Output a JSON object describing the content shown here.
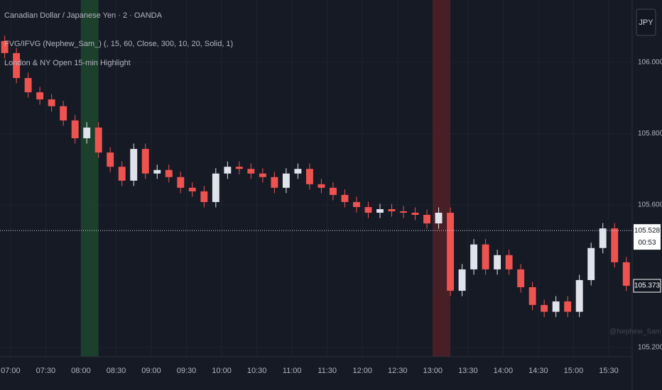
{
  "chart_data": {
    "type": "candlestick",
    "title": "Canadian Dollar / Japanese Yen · 2 · OANDA",
    "indicators": [
      "FVG/IFVG (Nephew_Sam_) (, 15, 60, Close, 300, 10, 20, Solid, 1)",
      "London & NY Open 15-min Highlight"
    ],
    "currency": "JPY",
    "watermark": "@Nephew_Sam_",
    "x": [
      415,
      425,
      435,
      445,
      455,
      465,
      475,
      485,
      495,
      505,
      515,
      525,
      535,
      545,
      555,
      565,
      575,
      585,
      595,
      605,
      615,
      625,
      635,
      645,
      655,
      665,
      675,
      685,
      695,
      705,
      715,
      725,
      735,
      745,
      755,
      765,
      775,
      785,
      795,
      805,
      815,
      825,
      835,
      845,
      855,
      865,
      875,
      885,
      895,
      905,
      915,
      925,
      935,
      945
    ],
    "open": [
      106.06,
      106.026,
      105.956,
      105.916,
      105.896,
      105.877,
      105.837,
      105.787,
      105.817,
      105.747,
      105.707,
      105.668,
      105.757,
      105.688,
      105.698,
      105.678,
      105.648,
      105.638,
      105.608,
      105.688,
      105.707,
      105.701,
      105.688,
      105.678,
      105.648,
      105.688,
      105.701,
      105.658,
      105.648,
      105.628,
      105.608,
      105.594,
      105.578,
      105.588,
      105.582,
      105.578,
      105.572,
      105.548,
      105.578,
      105.359,
      105.419,
      105.489,
      105.419,
      105.459,
      105.419,
      105.369,
      105.319,
      105.3,
      105.329,
      105.3,
      105.389,
      105.479,
      105.534,
      105.439
    ],
    "high": [
      106.075,
      106.041,
      105.971,
      105.931,
      105.911,
      105.892,
      105.852,
      105.832,
      105.832,
      105.762,
      105.722,
      105.772,
      105.772,
      105.713,
      105.713,
      105.693,
      105.663,
      105.653,
      105.703,
      105.722,
      105.722,
      105.716,
      105.703,
      105.693,
      105.703,
      105.716,
      105.716,
      105.673,
      105.663,
      105.643,
      105.623,
      105.609,
      105.603,
      105.603,
      105.597,
      105.593,
      105.587,
      105.593,
      105.593,
      105.434,
      105.504,
      105.504,
      105.474,
      105.474,
      105.434,
      105.384,
      105.334,
      105.344,
      105.344,
      105.404,
      105.494,
      105.549,
      105.549,
      105.454
    ],
    "low": [
      106.011,
      105.941,
      105.901,
      105.881,
      105.862,
      105.822,
      105.772,
      105.772,
      105.732,
      105.692,
      105.653,
      105.653,
      105.673,
      105.673,
      105.663,
      105.633,
      105.623,
      105.593,
      105.593,
      105.673,
      105.686,
      105.673,
      105.663,
      105.633,
      105.633,
      105.673,
      105.643,
      105.633,
      105.613,
      105.593,
      105.579,
      105.563,
      105.563,
      105.567,
      105.563,
      105.557,
      105.533,
      105.533,
      105.344,
      105.344,
      105.404,
      105.404,
      105.404,
      105.404,
      105.354,
      105.304,
      105.285,
      105.285,
      105.285,
      105.285,
      105.374,
      105.464,
      105.424,
      105.358
    ],
    "close": [
      106.026,
      105.956,
      105.916,
      105.896,
      105.877,
      105.837,
      105.787,
      105.817,
      105.747,
      105.707,
      105.668,
      105.757,
      105.688,
      105.698,
      105.678,
      105.648,
      105.638,
      105.608,
      105.688,
      105.707,
      105.701,
      105.688,
      105.678,
      105.648,
      105.688,
      105.701,
      105.658,
      105.648,
      105.628,
      105.608,
      105.594,
      105.578,
      105.588,
      105.582,
      105.578,
      105.572,
      105.548,
      105.578,
      105.359,
      105.419,
      105.489,
      105.419,
      105.459,
      105.419,
      105.369,
      105.319,
      105.3,
      105.329,
      105.3,
      105.389,
      105.479,
      105.534,
      105.439,
      105.373
    ],
    "up_color": "#e0e3eb",
    "down_color": "#ef5350",
    "xlim": [
      411,
      950
    ],
    "ylim": [
      105.18,
      106.175
    ],
    "xticks": [
      {
        "value": 420,
        "label": "07:00"
      },
      {
        "value": 450,
        "label": "07:30"
      },
      {
        "value": 480,
        "label": "08:00"
      },
      {
        "value": 510,
        "label": "08:30"
      },
      {
        "value": 540,
        "label": "09:00"
      },
      {
        "value": 570,
        "label": "09:30"
      },
      {
        "value": 600,
        "label": "10:00"
      },
      {
        "value": 630,
        "label": "10:30"
      },
      {
        "value": 660,
        "label": "11:00"
      },
      {
        "value": 690,
        "label": "11:30"
      },
      {
        "value": 720,
        "label": "12:00"
      },
      {
        "value": 750,
        "label": "12:30"
      },
      {
        "value": 780,
        "label": "13:00"
      },
      {
        "value": 810,
        "label": "13:30"
      },
      {
        "value": 840,
        "label": "14:00"
      },
      {
        "value": 870,
        "label": "14:30"
      },
      {
        "value": 900,
        "label": "15:00"
      },
      {
        "value": 930,
        "label": "15:30"
      }
    ],
    "yticks": [
      {
        "value": 106.0,
        "label": "106.000"
      },
      {
        "value": 105.8,
        "label": "105.800"
      },
      {
        "value": 105.6,
        "label": "105.600"
      },
      {
        "value": 105.2,
        "label": "105.200"
      }
    ],
    "grid": true,
    "highlights": [
      {
        "xlim": [
          480,
          495
        ],
        "color": "#1e4d2f"
      },
      {
        "xlim": [
          780,
          795
        ],
        "color": "#5a2228"
      }
    ],
    "price_line": {
      "value": 105.528,
      "label": "105.528"
    },
    "countdown": "00:53",
    "last_price": {
      "value": 105.373,
      "label": "105.373"
    }
  }
}
